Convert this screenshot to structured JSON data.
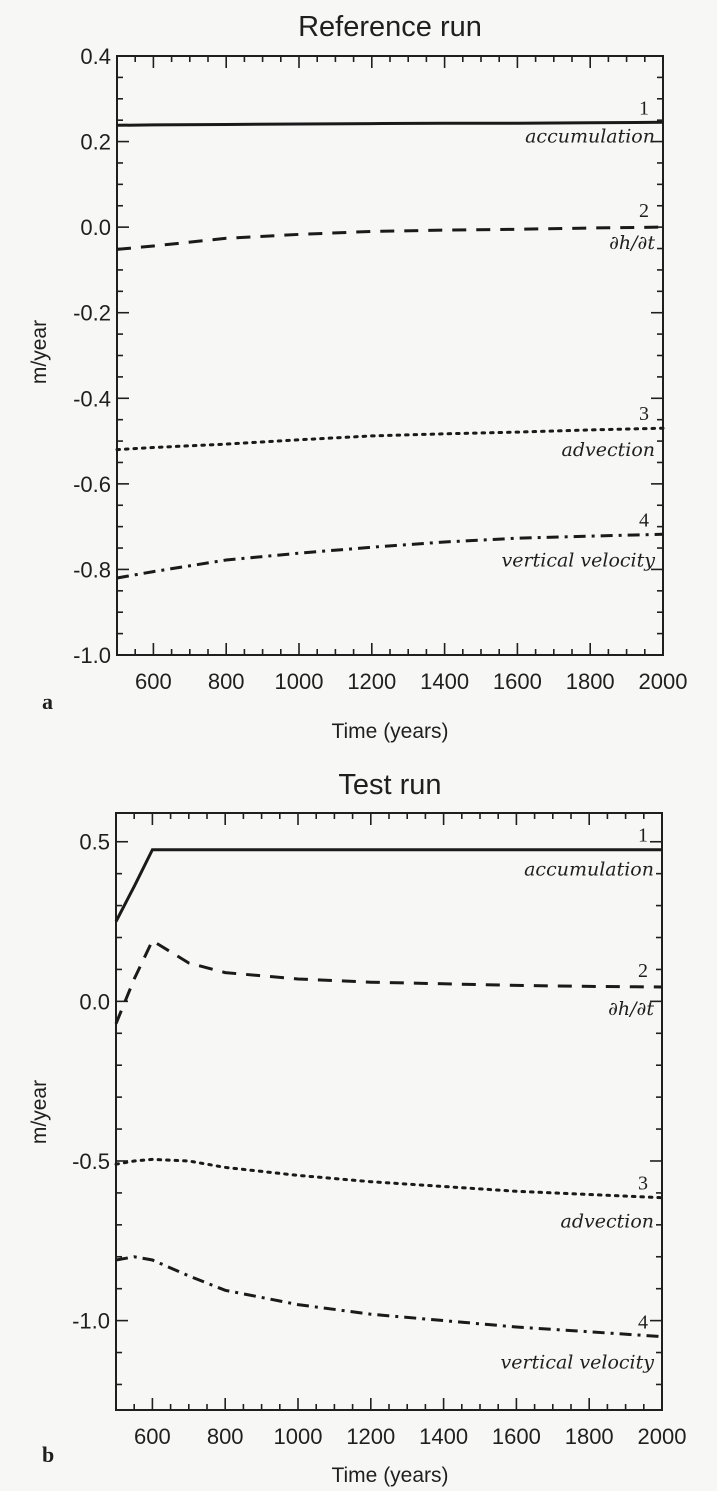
{
  "figure": {
    "panels": [
      {
        "id": "a",
        "panel_letter": "a",
        "title": "Reference run",
        "xlabel": "Time (years)",
        "ylabel": "m/year"
      },
      {
        "id": "b",
        "panel_letter": "b",
        "title": "Test run",
        "xlabel": "Time (years)",
        "ylabel": "m/year"
      }
    ]
  },
  "chart_data": [
    {
      "type": "line",
      "title": "Reference run",
      "panel_letter": "a",
      "xlabel": "Time (years)",
      "ylabel": "m/year",
      "xlim": [
        500,
        2000
      ],
      "ylim": [
        -1.0,
        0.4
      ],
      "xticks": [
        600,
        800,
        1000,
        1200,
        1400,
        1600,
        1800,
        2000
      ],
      "xtick_labels": [
        "600",
        "800",
        "1000",
        "1200",
        "1400",
        "1600",
        "1800",
        "2000"
      ],
      "yticks": [
        -1.0,
        -0.8,
        -0.6,
        -0.4,
        -0.2,
        0.0,
        0.2,
        0.4
      ],
      "ytick_labels": [
        "-1.0",
        "-0.8",
        "-0.6",
        "-0.4",
        "-0.2",
        "0.0",
        "0.2",
        "0.4"
      ],
      "grid": false,
      "legend": "inline labels at right end of each curve",
      "x": [
        500,
        600,
        800,
        1000,
        1200,
        1400,
        1600,
        1800,
        2000
      ],
      "series": [
        {
          "number": "1",
          "name": "accumulation",
          "style": "solid",
          "values": [
            0.238,
            0.239,
            0.24,
            0.241,
            0.242,
            0.243,
            0.243,
            0.244,
            0.245
          ]
        },
        {
          "number": "2",
          "name": "∂h/∂t",
          "style": "dashed",
          "values": [
            -0.052,
            -0.044,
            -0.026,
            -0.017,
            -0.01,
            -0.007,
            -0.005,
            -0.002,
            0.0
          ]
        },
        {
          "number": "3",
          "name": "advection",
          "style": "dotted",
          "values": [
            -0.52,
            -0.515,
            -0.507,
            -0.497,
            -0.488,
            -0.483,
            -0.479,
            -0.474,
            -0.47
          ]
        },
        {
          "number": "4",
          "name": "vertical velocity",
          "style": "dashdot",
          "values": [
            -0.82,
            -0.805,
            -0.778,
            -0.762,
            -0.748,
            -0.736,
            -0.727,
            -0.722,
            -0.718
          ]
        }
      ]
    },
    {
      "type": "line",
      "title": "Test run",
      "panel_letter": "b",
      "xlabel": "Time (years)",
      "ylabel": "m/year",
      "xlim": [
        500,
        2000
      ],
      "ylim": [
        -1.28,
        0.59
      ],
      "xticks": [
        600,
        800,
        1000,
        1200,
        1400,
        1600,
        1800,
        2000
      ],
      "xtick_labels": [
        "600",
        "800",
        "1000",
        "1200",
        "1400",
        "1600",
        "1800",
        "2000"
      ],
      "yticks": [
        -1.0,
        -0.5,
        0.0,
        0.5
      ],
      "ytick_labels": [
        "-1.0",
        "-0.5",
        "0.0",
        "0.5"
      ],
      "grid": false,
      "legend": "inline labels at right end of each curve",
      "x": [
        500,
        550,
        600,
        700,
        800,
        1000,
        1200,
        1400,
        1600,
        1800,
        2000
      ],
      "series": [
        {
          "number": "1",
          "name": "accumulation",
          "style": "solid",
          "values": [
            0.25,
            0.36,
            0.475,
            0.475,
            0.475,
            0.475,
            0.475,
            0.475,
            0.475,
            0.475,
            0.475
          ]
        },
        {
          "number": "2",
          "name": "∂h/∂t",
          "style": "dashed",
          "values": [
            -0.07,
            0.07,
            0.19,
            0.12,
            0.09,
            0.07,
            0.06,
            0.055,
            0.05,
            0.047,
            0.045
          ]
        },
        {
          "number": "3",
          "name": "advection",
          "style": "dotted",
          "values": [
            -0.51,
            -0.5,
            -0.495,
            -0.5,
            -0.52,
            -0.545,
            -0.565,
            -0.58,
            -0.595,
            -0.605,
            -0.615
          ]
        },
        {
          "number": "4",
          "name": "vertical velocity",
          "style": "dashdot",
          "values": [
            -0.81,
            -0.8,
            -0.81,
            -0.86,
            -0.905,
            -0.95,
            -0.98,
            -1.0,
            -1.02,
            -1.035,
            -1.05
          ]
        }
      ]
    }
  ]
}
